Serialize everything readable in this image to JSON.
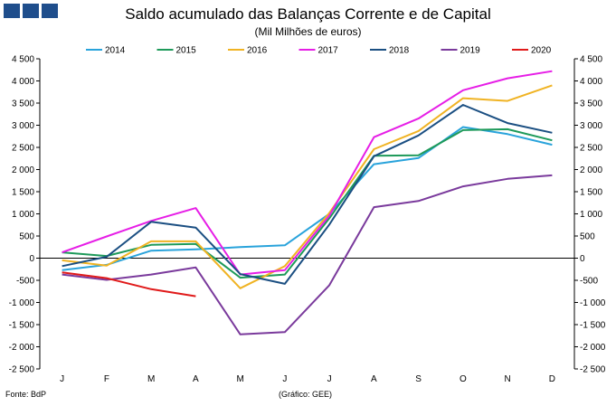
{
  "header": {
    "title": "Saldo acumulado das Balanças Corrente e de Capital",
    "subtitle": "(Mil Milhões de euros)"
  },
  "footer": {
    "source": "Fonte: BdP",
    "credit": "(Gráfico: GEE)"
  },
  "chart_data": {
    "type": "line",
    "title": "Saldo acumulado das Balanças Corrente e de Capital",
    "subtitle": "(Mil Milhões de euros)",
    "categories": [
      "J",
      "F",
      "M",
      "A",
      "M",
      "J",
      "J",
      "A",
      "S",
      "O",
      "N",
      "D"
    ],
    "yticks": [
      "4 500",
      "4 000",
      "3 500",
      "3 000",
      "2 500",
      "2 000",
      "1 500",
      "1 000",
      "500",
      "0",
      "-500",
      "-1 000",
      "-1 500",
      "-2 000",
      "-2 500"
    ],
    "ylim": [
      -2500,
      4500
    ],
    "legend_position": "top",
    "series": [
      {
        "name": "2014",
        "color": "#29a3db",
        "values": [
          -270,
          -150,
          170,
          200,
          250,
          290,
          1000,
          2120,
          2260,
          2960,
          2800,
          2560
        ]
      },
      {
        "name": "2015",
        "color": "#1e9a5a",
        "values": [
          130,
          50,
          300,
          320,
          -440,
          -370,
          900,
          2310,
          2320,
          2890,
          2910,
          2660
        ]
      },
      {
        "name": "2016",
        "color": "#f0b323",
        "values": [
          -50,
          -170,
          380,
          380,
          -680,
          -180,
          1020,
          2460,
          2870,
          3610,
          3550,
          3900
        ]
      },
      {
        "name": "2017",
        "color": "#e61ee6",
        "values": [
          130,
          490,
          840,
          1130,
          -370,
          -270,
          960,
          2730,
          3150,
          3790,
          4060,
          4220
        ]
      },
      {
        "name": "2018",
        "color": "#1b4f82",
        "values": [
          -180,
          30,
          820,
          690,
          -360,
          -580,
          760,
          2300,
          2770,
          3460,
          3050,
          2830
        ]
      },
      {
        "name": "2019",
        "color": "#7a3a9c",
        "values": [
          -370,
          -490,
          -370,
          -210,
          -1720,
          -1670,
          -610,
          1150,
          1290,
          1620,
          1790,
          1870
        ]
      },
      {
        "name": "2020",
        "color": "#e01a1a",
        "values": [
          -320,
          -450,
          -700,
          -860,
          null,
          null,
          null,
          null,
          null,
          null,
          null,
          null
        ]
      }
    ]
  }
}
